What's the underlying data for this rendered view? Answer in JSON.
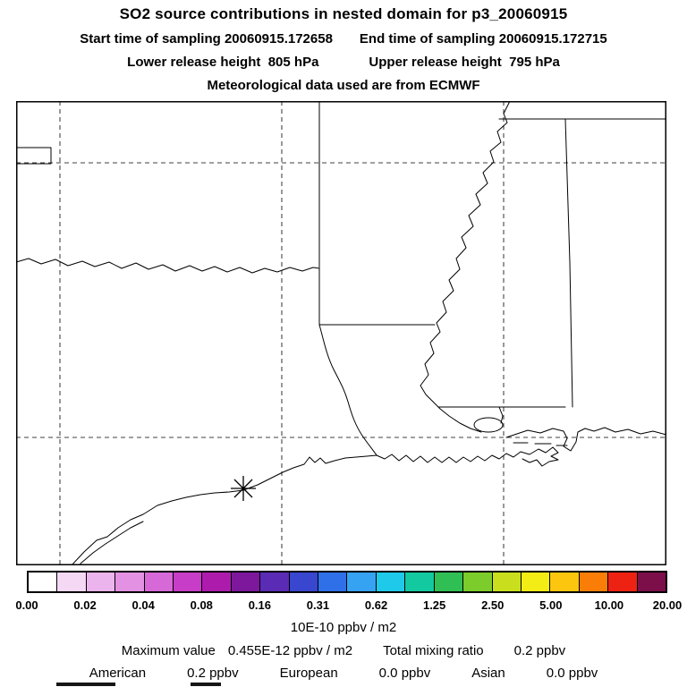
{
  "header": {
    "title": "SO2 source contributions in nested domain for p3_20060915",
    "sampling_start": "Start time of sampling 20060915.172658",
    "sampling_end": "End time of sampling 20060915.172715",
    "lower_release": "Lower release height  805 hPa",
    "upper_release": "Upper release height  795 hPa",
    "met_source": "Meteorological data used are from ECMWF"
  },
  "colorbar": {
    "tick_labels": [
      "0.00",
      "0.02",
      "0.04",
      "0.08",
      "0.16",
      "0.31",
      "0.62",
      "1.25",
      "2.50",
      "5.00",
      "10.00",
      "20.00"
    ],
    "segment_colors": [
      "#ffffff",
      "#f4d8f4",
      "#ecb4ec",
      "#e392e3",
      "#d768d7",
      "#c73dc7",
      "#ad1bad",
      "#7d189d",
      "#5a2bb4",
      "#3946cf",
      "#2f70e8",
      "#35a3f2",
      "#1fc9ea",
      "#12c9a0",
      "#2fbf54",
      "#7ccc2b",
      "#c9df1e",
      "#f3ec15",
      "#fcc60f",
      "#fa7d08",
      "#ee2212",
      "#7c0f4a"
    ],
    "units": "10E-10 ppbv / m2"
  },
  "stats": {
    "max_label": "Maximum value",
    "max_value": "0.455E-12 ppbv / m2",
    "tmr_label": "Total mixing ratio",
    "tmr_value": "0.2 ppbv",
    "regions": [
      {
        "name": "American",
        "value": "0.2 ppbv"
      },
      {
        "name": "European",
        "value": "0.0 ppbv"
      },
      {
        "name": "Asian",
        "value": "0.0 ppbv"
      }
    ]
  },
  "chart_data": {
    "type": "heatmap",
    "title": "SO2 source contributions in nested domain for p3_20060915",
    "start_time": "20060915.172658",
    "end_time": "20060915.172715",
    "lower_release_height": "805 hPa",
    "upper_release_height": "795 hPa",
    "met_data_source": "ECMWF",
    "colorbar_levels": [
      0,
      0.02,
      0.04,
      0.08,
      0.16,
      0.31,
      0.62,
      1.25,
      2.5,
      5,
      10,
      20
    ],
    "units": "10E-10 ppbv / m2",
    "max_value": "0.455E-12 ppbv / m2",
    "total_mixing_ratio": "0.2 ppbv",
    "source_contributions": [
      {
        "region": "American",
        "value_ppbv": 0.2
      },
      {
        "region": "European",
        "value_ppbv": 0.0
      },
      {
        "region": "Asian",
        "value_ppbv": 0.0
      }
    ],
    "notes": "Map of south-central US Gulf coast (Texas, Oklahoma, Arkansas, Louisiana, Mississippi); no shaded concentrations above lowest level; asterisk release marker on Texas coast"
  }
}
